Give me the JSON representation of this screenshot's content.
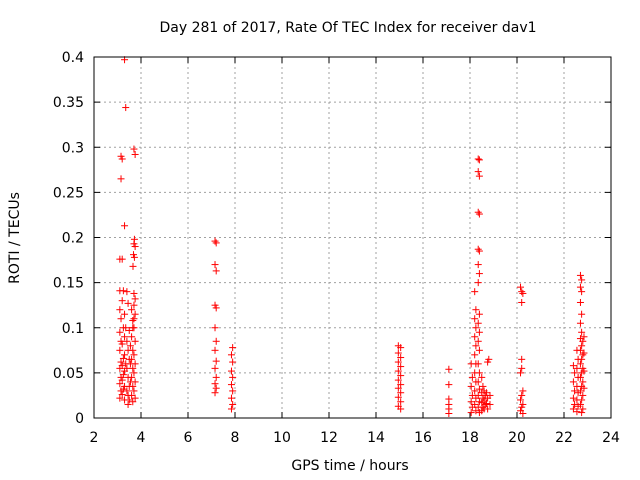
{
  "chart_data": {
    "type": "scatter",
    "title": "Day 281 of 2017, Rate Of TEC Index for receiver dav1",
    "xlabel": "GPS time / hours",
    "ylabel": "ROTI / TECUs",
    "xlim": [
      2,
      24
    ],
    "ylim": [
      0,
      0.4
    ],
    "grid": true,
    "marker": "+",
    "marker_color": "#ff0000",
    "xticks": [
      {
        "value": 2,
        "label": "2"
      },
      {
        "value": 4,
        "label": "4"
      },
      {
        "value": 6,
        "label": "6"
      },
      {
        "value": 8,
        "label": "8"
      },
      {
        "value": 10,
        "label": "10"
      },
      {
        "value": 12,
        "label": "12"
      },
      {
        "value": 14,
        "label": "14"
      },
      {
        "value": 16,
        "label": "16"
      },
      {
        "value": 18,
        "label": "18"
      },
      {
        "value": 20,
        "label": "20"
      },
      {
        "value": 22,
        "label": "22"
      },
      {
        "value": 24,
        "label": "24"
      }
    ],
    "yticks": [
      {
        "value": 0,
        "label": "0"
      },
      {
        "value": 0.05,
        "label": "0.05"
      },
      {
        "value": 0.1,
        "label": "0.1"
      },
      {
        "value": 0.15,
        "label": "0.15"
      },
      {
        "value": 0.2,
        "label": "0.2"
      },
      {
        "value": 0.25,
        "label": "0.25"
      },
      {
        "value": 0.3,
        "label": "0.3"
      },
      {
        "value": 0.35,
        "label": "0.35"
      },
      {
        "value": 0.4,
        "label": "0.4"
      }
    ],
    "series": [
      {
        "name": "ROTI",
        "points": [
          [
            3.3,
            0.397
          ],
          [
            3.35,
            0.344
          ],
          [
            3.15,
            0.29
          ],
          [
            3.2,
            0.287
          ],
          [
            3.15,
            0.265
          ],
          [
            3.3,
            0.213
          ],
          [
            3.1,
            0.176
          ],
          [
            3.2,
            0.176
          ],
          [
            3.1,
            0.141
          ],
          [
            3.25,
            0.141
          ],
          [
            3.2,
            0.13
          ],
          [
            3.1,
            0.12
          ],
          [
            3.3,
            0.115
          ],
          [
            3.15,
            0.11
          ],
          [
            3.25,
            0.1
          ],
          [
            3.1,
            0.095
          ],
          [
            3.3,
            0.09
          ],
          [
            3.15,
            0.085
          ],
          [
            3.2,
            0.082
          ],
          [
            3.1,
            0.075
          ],
          [
            3.3,
            0.07
          ],
          [
            3.25,
            0.066
          ],
          [
            3.15,
            0.062
          ],
          [
            3.2,
            0.058
          ],
          [
            3.1,
            0.055
          ],
          [
            3.3,
            0.052
          ],
          [
            3.25,
            0.048
          ],
          [
            3.15,
            0.045
          ],
          [
            3.2,
            0.042
          ],
          [
            3.1,
            0.038
          ],
          [
            3.3,
            0.035
          ],
          [
            3.25,
            0.032
          ],
          [
            3.15,
            0.03
          ],
          [
            3.2,
            0.026
          ],
          [
            3.1,
            0.022
          ],
          [
            3.3,
            0.02
          ],
          [
            3.4,
            0.085
          ],
          [
            3.45,
            0.075
          ],
          [
            3.5,
            0.065
          ],
          [
            3.4,
            0.055
          ],
          [
            3.45,
            0.045
          ],
          [
            3.5,
            0.035
          ],
          [
            3.4,
            0.03
          ],
          [
            3.45,
            0.025
          ],
          [
            3.5,
            0.02
          ],
          [
            3.55,
            0.08
          ],
          [
            3.55,
            0.06
          ],
          [
            3.55,
            0.04
          ],
          [
            3.6,
            0.12
          ],
          [
            3.65,
            0.1
          ],
          [
            3.6,
            0.09
          ],
          [
            3.65,
            0.075
          ],
          [
            3.6,
            0.065
          ],
          [
            3.65,
            0.055
          ],
          [
            3.6,
            0.045
          ],
          [
            3.65,
            0.035
          ],
          [
            3.6,
            0.025
          ],
          [
            3.65,
            0.018
          ],
          [
            3.7,
            0.1
          ],
          [
            3.75,
            0.085
          ],
          [
            3.7,
            0.07
          ],
          [
            3.75,
            0.06
          ],
          [
            3.7,
            0.05
          ],
          [
            3.75,
            0.04
          ],
          [
            3.7,
            0.03
          ],
          [
            3.75,
            0.022
          ],
          [
            3.7,
            0.138
          ],
          [
            3.75,
            0.132
          ],
          [
            3.7,
            0.125
          ],
          [
            3.75,
            0.115
          ],
          [
            3.7,
            0.11
          ],
          [
            3.65,
            0.108
          ],
          [
            3.7,
            0.298
          ],
          [
            3.75,
            0.292
          ],
          [
            3.72,
            0.198
          ],
          [
            3.7,
            0.193
          ],
          [
            3.75,
            0.19
          ],
          [
            3.68,
            0.181
          ],
          [
            3.72,
            0.178
          ],
          [
            3.66,
            0.168
          ],
          [
            3.4,
            0.14
          ],
          [
            3.45,
            0.127
          ],
          [
            3.35,
            0.1
          ],
          [
            3.5,
            0.097
          ],
          [
            3.35,
            0.06
          ],
          [
            3.45,
            0.015
          ],
          [
            7.15,
            0.196
          ],
          [
            7.2,
            0.194
          ],
          [
            7.15,
            0.17
          ],
          [
            7.2,
            0.163
          ],
          [
            7.15,
            0.125
          ],
          [
            7.2,
            0.122
          ],
          [
            7.15,
            0.1
          ],
          [
            7.2,
            0.085
          ],
          [
            7.15,
            0.075
          ],
          [
            7.2,
            0.063
          ],
          [
            7.15,
            0.055
          ],
          [
            7.2,
            0.045
          ],
          [
            7.15,
            0.038
          ],
          [
            7.2,
            0.033
          ],
          [
            7.15,
            0.028
          ],
          [
            7.9,
            0.078
          ],
          [
            7.85,
            0.07
          ],
          [
            7.9,
            0.062
          ],
          [
            7.85,
            0.052
          ],
          [
            7.9,
            0.045
          ],
          [
            7.85,
            0.037
          ],
          [
            7.9,
            0.03
          ],
          [
            7.85,
            0.022
          ],
          [
            7.9,
            0.015
          ],
          [
            7.85,
            0.01
          ],
          [
            14.95,
            0.08
          ],
          [
            15.05,
            0.078
          ],
          [
            14.95,
            0.072
          ],
          [
            15.05,
            0.067
          ],
          [
            14.95,
            0.062
          ],
          [
            15.05,
            0.057
          ],
          [
            14.95,
            0.052
          ],
          [
            15.05,
            0.047
          ],
          [
            14.95,
            0.042
          ],
          [
            15.05,
            0.037
          ],
          [
            14.95,
            0.033
          ],
          [
            15.05,
            0.028
          ],
          [
            14.95,
            0.023
          ],
          [
            15.05,
            0.018
          ],
          [
            14.95,
            0.013
          ],
          [
            15.05,
            0.01
          ],
          [
            17.1,
            0.054
          ],
          [
            17.1,
            0.037
          ],
          [
            17.1,
            0.021
          ],
          [
            17.1,
            0.015
          ],
          [
            17.1,
            0.01
          ],
          [
            17.1,
            0.005
          ],
          [
            18.05,
            0.06
          ],
          [
            18.1,
            0.045
          ],
          [
            18.05,
            0.035
          ],
          [
            18.1,
            0.025
          ],
          [
            18.05,
            0.018
          ],
          [
            18.1,
            0.012
          ],
          [
            18.05,
            0.006
          ],
          [
            18.2,
            0.14
          ],
          [
            18.25,
            0.12
          ],
          [
            18.2,
            0.11
          ],
          [
            18.25,
            0.1
          ],
          [
            18.2,
            0.09
          ],
          [
            18.25,
            0.08
          ],
          [
            18.2,
            0.07
          ],
          [
            18.25,
            0.06
          ],
          [
            18.2,
            0.05
          ],
          [
            18.25,
            0.04
          ],
          [
            18.2,
            0.03
          ],
          [
            18.25,
            0.022
          ],
          [
            18.2,
            0.015
          ],
          [
            18.25,
            0.008
          ],
          [
            18.35,
            0.287
          ],
          [
            18.4,
            0.286
          ],
          [
            18.35,
            0.273
          ],
          [
            18.4,
            0.268
          ],
          [
            18.35,
            0.228
          ],
          [
            18.4,
            0.226
          ],
          [
            18.35,
            0.187
          ],
          [
            18.4,
            0.185
          ],
          [
            18.35,
            0.17
          ],
          [
            18.4,
            0.16
          ],
          [
            18.35,
            0.15
          ],
          [
            18.4,
            0.115
          ],
          [
            18.35,
            0.105
          ],
          [
            18.4,
            0.095
          ],
          [
            18.35,
            0.085
          ],
          [
            18.4,
            0.075
          ],
          [
            18.35,
            0.06
          ],
          [
            18.4,
            0.05
          ],
          [
            18.35,
            0.04
          ],
          [
            18.4,
            0.032
          ],
          [
            18.35,
            0.025
          ],
          [
            18.4,
            0.018
          ],
          [
            18.35,
            0.012
          ],
          [
            18.4,
            0.006
          ],
          [
            18.5,
            0.045
          ],
          [
            18.55,
            0.035
          ],
          [
            18.5,
            0.028
          ],
          [
            18.55,
            0.022
          ],
          [
            18.5,
            0.017
          ],
          [
            18.55,
            0.012
          ],
          [
            18.5,
            0.008
          ],
          [
            18.6,
            0.03
          ],
          [
            18.65,
            0.025
          ],
          [
            18.6,
            0.02
          ],
          [
            18.65,
            0.015
          ],
          [
            18.6,
            0.01
          ],
          [
            18.7,
            0.028
          ],
          [
            18.75,
            0.022
          ],
          [
            18.7,
            0.016
          ],
          [
            18.75,
            0.01
          ],
          [
            18.8,
            0.065
          ],
          [
            18.75,
            0.062
          ],
          [
            18.85,
            0.025
          ],
          [
            18.85,
            0.015
          ],
          [
            20.15,
            0.145
          ],
          [
            20.2,
            0.14
          ],
          [
            20.25,
            0.138
          ],
          [
            20.2,
            0.128
          ],
          [
            20.2,
            0.065
          ],
          [
            20.2,
            0.055
          ],
          [
            20.15,
            0.05
          ],
          [
            20.25,
            0.03
          ],
          [
            20.2,
            0.025
          ],
          [
            20.15,
            0.02
          ],
          [
            20.25,
            0.015
          ],
          [
            20.2,
            0.012
          ],
          [
            20.15,
            0.008
          ],
          [
            20.25,
            0.005
          ],
          [
            22.4,
            0.058
          ],
          [
            22.45,
            0.05
          ],
          [
            22.4,
            0.04
          ],
          [
            22.45,
            0.03
          ],
          [
            22.4,
            0.022
          ],
          [
            22.45,
            0.015
          ],
          [
            22.4,
            0.01
          ],
          [
            22.55,
            0.075
          ],
          [
            22.6,
            0.065
          ],
          [
            22.55,
            0.055
          ],
          [
            22.6,
            0.045
          ],
          [
            22.55,
            0.035
          ],
          [
            22.6,
            0.028
          ],
          [
            22.55,
            0.02
          ],
          [
            22.6,
            0.013
          ],
          [
            22.55,
            0.007
          ],
          [
            22.7,
            0.158
          ],
          [
            22.75,
            0.153
          ],
          [
            22.7,
            0.145
          ],
          [
            22.75,
            0.14
          ],
          [
            22.7,
            0.128
          ],
          [
            22.75,
            0.115
          ],
          [
            22.7,
            0.105
          ],
          [
            22.75,
            0.095
          ],
          [
            22.7,
            0.088
          ],
          [
            22.8,
            0.085
          ],
          [
            22.75,
            0.08
          ],
          [
            22.7,
            0.075
          ],
          [
            22.8,
            0.07
          ],
          [
            22.75,
            0.065
          ],
          [
            22.7,
            0.06
          ],
          [
            22.8,
            0.055
          ],
          [
            22.75,
            0.05
          ],
          [
            22.7,
            0.045
          ],
          [
            22.8,
            0.04
          ],
          [
            22.75,
            0.035
          ],
          [
            22.7,
            0.03
          ],
          [
            22.8,
            0.025
          ],
          [
            22.75,
            0.02
          ],
          [
            22.7,
            0.015
          ],
          [
            22.8,
            0.01
          ],
          [
            22.75,
            0.006
          ],
          [
            22.85,
            0.09
          ],
          [
            22.85,
            0.072
          ],
          [
            22.85,
            0.052
          ],
          [
            22.85,
            0.033
          ]
        ]
      }
    ]
  }
}
